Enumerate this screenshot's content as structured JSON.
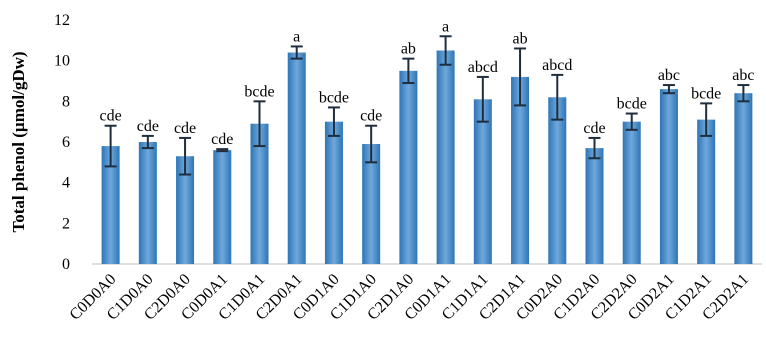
{
  "chart_data": {
    "type": "bar",
    "ylabel": "Total phenol (µmol/gDw)",
    "ylim": [
      0,
      12
    ],
    "yticks": [
      0,
      2,
      4,
      6,
      8,
      10,
      12
    ],
    "grid": false,
    "colors": {
      "bar": "#5b9bd5",
      "bar_dark": "#2e75b6",
      "error": "#1f2d3d",
      "axis": "#bfbfbf"
    },
    "categories": [
      "C0D0A0",
      "C1D0A0",
      "C2D0A0",
      "C0D0A1",
      "C1D0A1",
      "C2D0A1",
      "C0D1A0",
      "C1D1A0",
      "C2D1A0",
      "C0D1A1",
      "C1D1A1",
      "C2D1A1",
      "C0D2A0",
      "C1D2A0",
      "C2D2A0",
      "C0D2A1",
      "C1D2A1",
      "C2D2A1"
    ],
    "values": [
      5.8,
      6.0,
      5.3,
      5.6,
      6.9,
      10.4,
      7.0,
      5.9,
      9.5,
      10.5,
      8.1,
      9.2,
      8.2,
      5.7,
      7.0,
      8.6,
      7.1,
      8.4
    ],
    "errors": [
      1.0,
      0.3,
      0.9,
      0.05,
      1.1,
      0.3,
      0.7,
      0.9,
      0.6,
      0.7,
      1.1,
      1.4,
      1.1,
      0.5,
      0.4,
      0.2,
      0.8,
      0.4
    ],
    "significance": [
      "cde",
      "cde",
      "cde",
      "cde",
      "bcde",
      "a",
      "bcde",
      "cde",
      "ab",
      "a",
      "abcd",
      "ab",
      "abcd",
      "cde",
      "bcde",
      "abc",
      "bcde",
      "abc"
    ]
  }
}
